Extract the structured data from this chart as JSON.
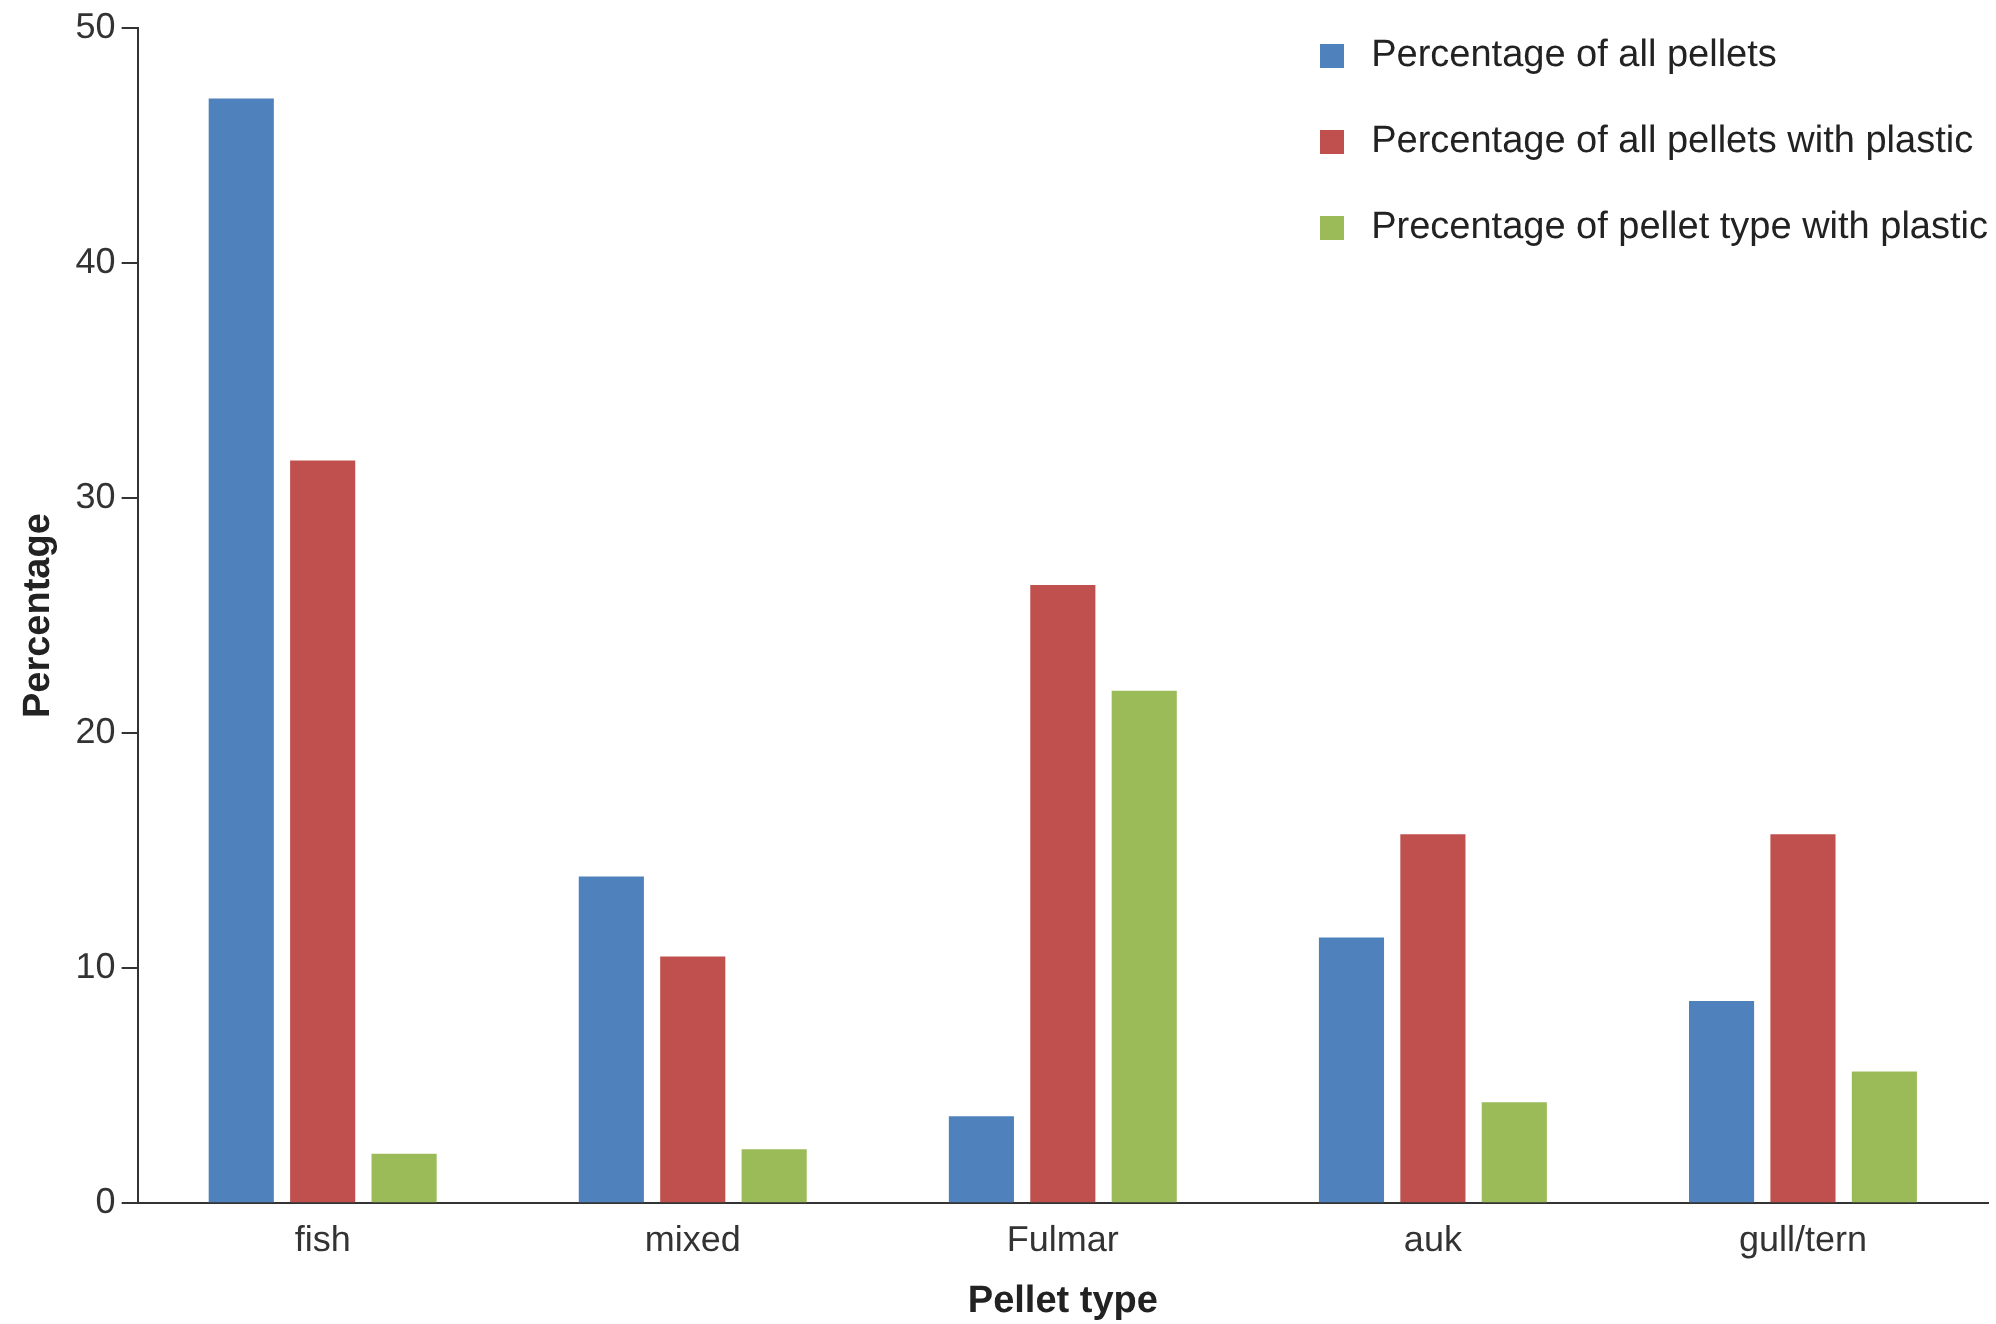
{
  "chart_data": {
    "type": "bar",
    "xlabel": "Pellet type",
    "ylabel": "Percentage",
    "categories": [
      "fish",
      "mixed",
      "Fulmar",
      "auk",
      "gull/tern"
    ],
    "series": [
      {
        "name": "Percentage of all pellets",
        "color": "#4f81bd",
        "values": [
          47.0,
          13.9,
          3.7,
          11.3,
          8.6
        ]
      },
      {
        "name": "Percentage of all pellets with plastic",
        "color": "#c0504d",
        "values": [
          31.6,
          10.5,
          26.3,
          15.7,
          15.7
        ]
      },
      {
        "name": "Precentage of pellet type with plastic",
        "color": "#9bbb59",
        "values": [
          2.1,
          2.3,
          21.8,
          4.3,
          5.6
        ]
      }
    ],
    "ylim": [
      0,
      50
    ],
    "yticks": [
      0,
      10,
      20,
      30,
      40,
      50
    ],
    "grid": false,
    "legend": "top right"
  }
}
